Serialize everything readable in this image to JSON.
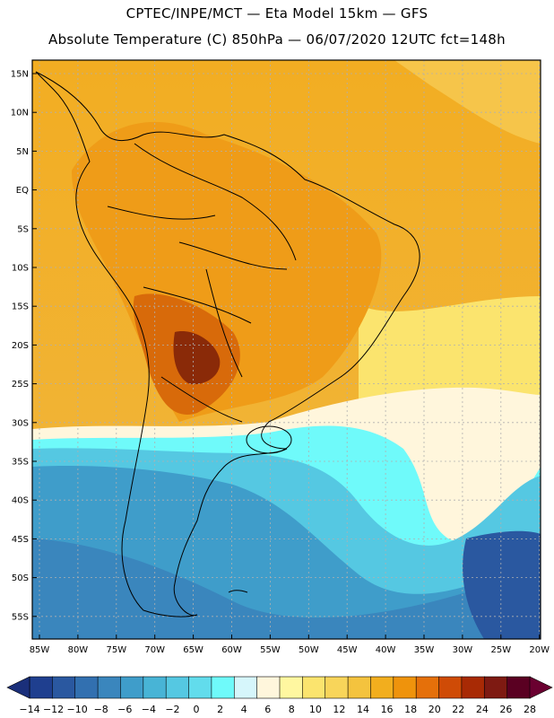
{
  "header": {
    "line1": "CPTEC/INPE/MCT —  Eta Model 15km — GFS",
    "line2": "Absolute Temperature (C) 850hPa — 06/07/2020 12UTC fct=148h"
  },
  "axes": {
    "lat_labels": [
      "15N",
      "10N",
      "5N",
      "EQ",
      "5S",
      "10S",
      "15S",
      "20S",
      "25S",
      "30S",
      "35S",
      "40S",
      "45S",
      "50S",
      "55S"
    ],
    "lon_labels": [
      "85W",
      "80W",
      "75W",
      "70W",
      "65W",
      "60W",
      "55W",
      "50W",
      "45W",
      "40W",
      "35W",
      "30W",
      "25W",
      "20W"
    ]
  },
  "colorbar": {
    "labels": [
      "−14",
      "−12",
      "−10",
      "−8",
      "−6",
      "−4",
      "−2",
      "0",
      "2",
      "4",
      "6",
      "8",
      "10",
      "12",
      "14",
      "16",
      "18",
      "20",
      "22",
      "24",
      "26",
      "28"
    ],
    "colors": [
      "#1f3f8f",
      "#2a58a0",
      "#3270b0",
      "#3a86bd",
      "#3f9dca",
      "#48b4d6",
      "#55c8e2",
      "#62dcec",
      "#6ffafa",
      "#d6f6fb",
      "#fff6dc",
      "#fff7a0",
      "#fbe46e",
      "#f8d55a",
      "#f4c33e",
      "#f2ae1e",
      "#ef930c",
      "#e5700a",
      "#cf4b06",
      "#a82a05",
      "#7e1a12",
      "#5a0022"
    ],
    "min_color": "#1a2f7a",
    "max_color": "#6a0030"
  },
  "map": {
    "ocean_south_color": "#3a9ec8",
    "ocean_deep_color": "#2a67a8",
    "cyan_band_color": "#58dcef",
    "light_band_color": "#e6fafb",
    "warm_color": "#f0ae22",
    "hot_color": "#e07c10",
    "land_line_color": "#000000",
    "grid_color": "#b0b0b0"
  }
}
